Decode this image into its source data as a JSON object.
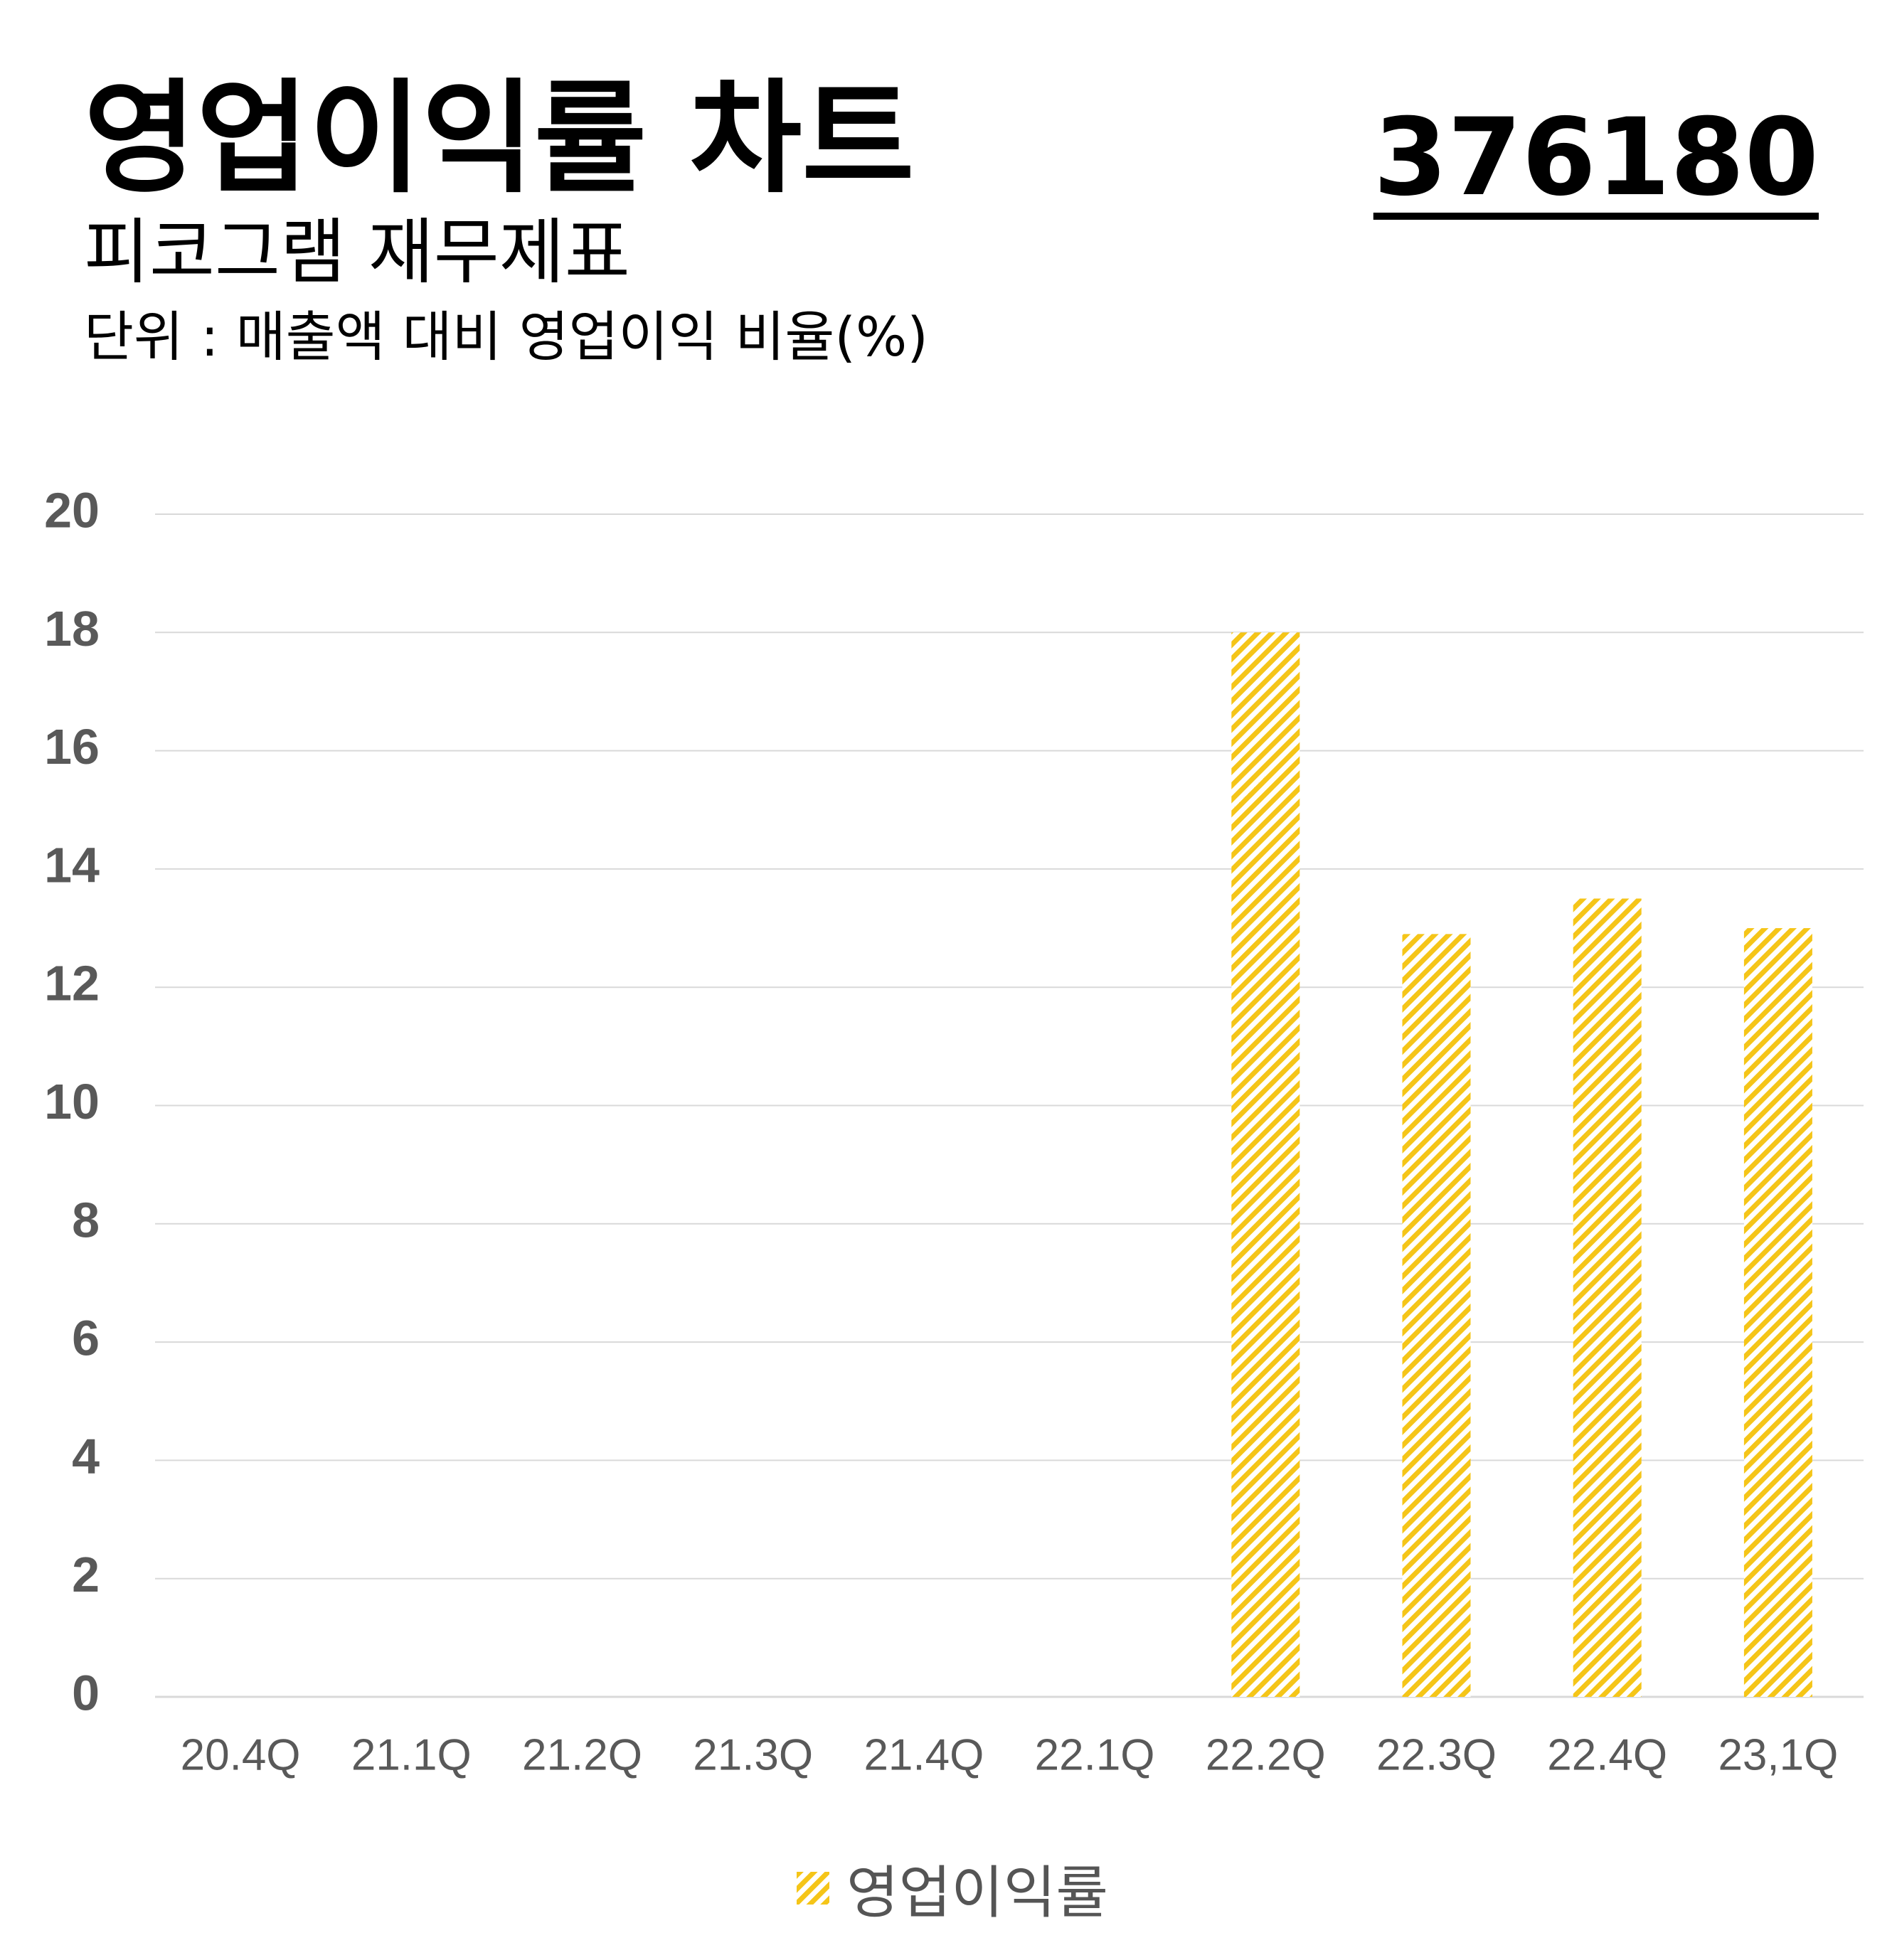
{
  "header": {
    "title": "영업이익률 차트",
    "stock_code": "376180",
    "subtitle": "피코그램 재무제표",
    "unit": "단위 : 매출액 대비 영업이익 비율(%)"
  },
  "colors": {
    "bar": "#F5C518",
    "grid": "#d9d9d9",
    "axis_text": "#595959",
    "category_text": "#595959"
  },
  "chart_data": {
    "type": "bar",
    "categories": [
      "20.4Q",
      "21.1Q",
      "21.2Q",
      "21.3Q",
      "21.4Q",
      "22.1Q",
      "22.2Q",
      "22.3Q",
      "22.4Q",
      "23,1Q"
    ],
    "series": [
      {
        "name": "영업이익률",
        "values": [
          null,
          null,
          null,
          null,
          null,
          null,
          18.0,
          12.9,
          13.5,
          13.0
        ]
      }
    ],
    "yticks": [
      0,
      2,
      4,
      6,
      8,
      10,
      12,
      14,
      16,
      18,
      20
    ],
    "ylim": [
      0,
      20
    ],
    "grid": true,
    "legend_position": "bottom-center",
    "bar_fill": "diagonal-hatch"
  }
}
